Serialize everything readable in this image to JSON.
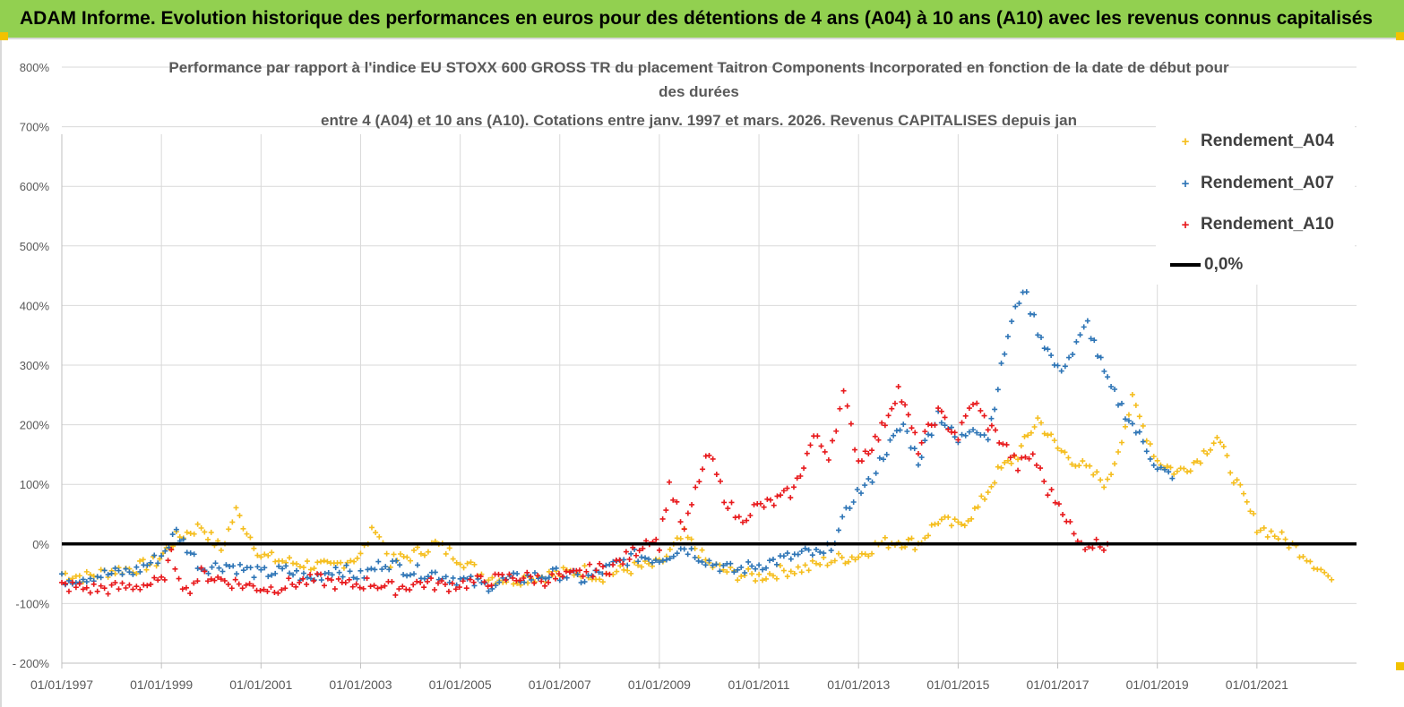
{
  "banner": {
    "title": "ADAM Informe. Evolution historique des performances en euros pour des détentions de 4 ans (A04) à 10 ans (A10) avec les revenus connus capitalisés"
  },
  "chart": {
    "title_line1": "Performance par rapport à l'indice EU STOXX 600 GROSS TR  du placement Taitron Components Incorporated en fonction de la date de début pour",
    "title_line2": "des durées",
    "title_line3": "entre 4 (A04) et 10 ans (A10).  Cotations entre janv. 1997 et mars. 2026. Revenus CAPITALISES depuis jan"
  },
  "colors": {
    "A04": "#f5be1e",
    "A07": "#2e75b6",
    "A10": "#e8191c",
    "zero": "#000000",
    "grid": "#d9d9d9",
    "banner": "#92d050"
  },
  "legend": {
    "marker": "+",
    "a04": "Rendement_A04",
    "a07": "Rendement_A07",
    "a10": "Rendement_A10",
    "zero": "0,0%"
  },
  "chart_data": {
    "type": "scatter",
    "title": "Performance par rapport à l'indice EU STOXX 600 GROSS TR  du placement Taitron Components Incorporated en fonction de la date de début pour des durées entre 4 (A04) et 10 ans (A10).  Cotations entre janv. 1997 et mars. 2026. Revenus CAPITALISES depuis jan",
    "xlabel": "",
    "ylabel": "",
    "x_unit": "years since 1997-01-01",
    "xlim": [
      0,
      26
    ],
    "ylim": [
      -200,
      800
    ],
    "y_unit": "%",
    "x_tick_labels": [
      "01/01/1997",
      "01/01/1999",
      "01/01/2001",
      "01/01/2003",
      "01/01/2005",
      "01/01/2007",
      "01/01/2009",
      "01/01/2011",
      "01/01/2013",
      "01/01/2015",
      "01/01/2017",
      "01/01/2019",
      "01/01/2021"
    ],
    "y_tick_labels": [
      "- 200%",
      "-100%",
      "0%",
      "100%",
      "200%",
      "300%",
      "400%",
      "500%",
      "600%",
      "700%",
      "800%"
    ],
    "grid": true,
    "legend_position": "top-right",
    "reference_line": {
      "name": "0,0%",
      "y": 0
    },
    "series": [
      {
        "name": "Rendement_A04",
        "x": [
          0,
          0.5,
          1,
          1.5,
          1.9,
          2.3,
          2.8,
          3.2,
          3.5,
          4,
          4.5,
          5,
          5.4,
          5.8,
          6,
          6.3,
          6.6,
          7,
          7.5,
          8,
          8.5,
          9,
          9.5,
          10,
          10.5,
          10.8,
          11,
          11.5,
          12,
          12.5,
          13,
          13.5,
          14,
          14.5,
          15,
          15.3,
          15.6,
          16,
          16.4,
          16.8,
          17.2,
          17.6,
          18,
          18.4,
          18.8,
          19.2,
          19.6,
          20,
          20.5,
          21,
          21.5,
          22,
          22.4,
          22.8,
          23.2,
          23.6,
          24,
          24.5,
          25,
          25.5
        ],
        "y": [
          -50,
          -55,
          -45,
          -40,
          -30,
          10,
          30,
          -10,
          55,
          -20,
          -30,
          -35,
          -40,
          -25,
          -20,
          30,
          -30,
          -20,
          0,
          -25,
          -55,
          -60,
          -55,
          -50,
          -45,
          -55,
          -50,
          -40,
          -35,
          15,
          -35,
          -50,
          -55,
          -45,
          -40,
          -30,
          -25,
          -20,
          0,
          5,
          0,
          40,
          30,
          60,
          120,
          150,
          210,
          160,
          130,
          100,
          240,
          140,
          120,
          140,
          180,
          100,
          30,
          10,
          -20,
          -60
        ]
      },
      {
        "name": "Rendement_A07",
        "x": [
          0,
          0.5,
          1,
          1.5,
          2,
          2.3,
          2.8,
          3.3,
          4,
          4.5,
          5,
          5.5,
          6,
          6.5,
          7,
          7.5,
          8,
          8.5,
          9,
          9.5,
          10,
          10.5,
          11,
          11.5,
          12,
          12.5,
          13,
          13.5,
          14,
          14.5,
          15,
          15.3,
          15.6,
          15.9,
          16.2,
          16.5,
          16.9,
          17.2,
          17.6,
          18,
          18.3,
          18.6,
          19,
          19.3,
          19.6,
          20,
          20.3,
          20.6,
          21,
          21.5,
          22,
          22.3
        ],
        "y": [
          -60,
          -55,
          -50,
          -45,
          -20,
          20,
          -40,
          -35,
          -50,
          -45,
          -60,
          -40,
          -55,
          -30,
          -45,
          -50,
          -60,
          -70,
          -60,
          -55,
          -50,
          -60,
          -40,
          -20,
          -25,
          -5,
          -30,
          -45,
          -35,
          -25,
          -15,
          -20,
          20,
          80,
          100,
          150,
          200,
          140,
          220,
          170,
          200,
          180,
          350,
          430,
          360,
          290,
          320,
          370,
          270,
          200,
          130,
          110
        ]
      },
      {
        "name": "Rendement_A10",
        "x": [
          0,
          0.5,
          1,
          1.5,
          2,
          2.2,
          2.5,
          2.8,
          3.2,
          3.7,
          4.2,
          4.7,
          5.2,
          5.7,
          6.2,
          6.7,
          7.2,
          7.7,
          8.2,
          8.7,
          9.2,
          9.7,
          10.2,
          10.6,
          11,
          11.4,
          11.8,
          12,
          12.2,
          12.5,
          12.8,
          13,
          13.3,
          13.6,
          13.9,
          14.3,
          14.7,
          15.1,
          15.4,
          15.7,
          16,
          16.4,
          16.8,
          17.2,
          17.6,
          18,
          18.3,
          18.6,
          18.9,
          19.2,
          19.5,
          19.8,
          20.1,
          20.4,
          20.7,
          21
        ],
        "y": [
          -70,
          -75,
          -75,
          -70,
          -65,
          -20,
          -80,
          -50,
          -60,
          -70,
          -75,
          -65,
          -60,
          -70,
          -65,
          -75,
          -65,
          -70,
          -65,
          -60,
          -55,
          -60,
          -55,
          -45,
          -40,
          -20,
          10,
          0,
          100,
          20,
          110,
          150,
          80,
          40,
          60,
          70,
          90,
          180,
          150,
          250,
          140,
          180,
          260,
          160,
          220,
          180,
          240,
          200,
          170,
          130,
          150,
          90,
          60,
          0,
          0,
          0
        ]
      }
    ]
  }
}
